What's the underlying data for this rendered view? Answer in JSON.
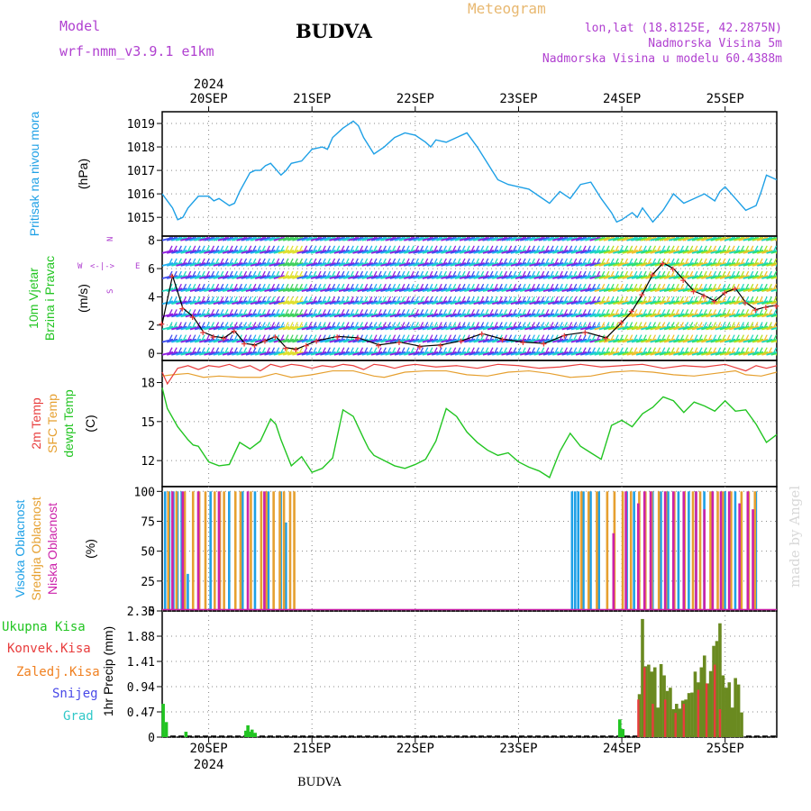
{
  "header": {
    "model_label": "Model",
    "model_name": "wrf-nmm_v3.9.1 e1km",
    "station": "BUDVA",
    "meteogram": "Meteogram",
    "lonlat": "lon,lat (18.8125E, 42.2875N)",
    "elevation": "Nadmorska Visina 5m",
    "model_elevation": "Nadmorska Visina u modelu 60.4388m",
    "footer_station": "BUDVA",
    "credit": "made by Angel"
  },
  "colors": {
    "pressure": "#1ea0e6",
    "temp2m": "#e83c3c",
    "sfc_temp": "#e6a030",
    "dewpt": "#22c522",
    "high_cloud": "#1ea0e6",
    "mid_cloud": "#e6a030",
    "low_cloud": "#cc22aa",
    "total_precip": "#22c522",
    "conv_precip": "#e83c3c",
    "frozen": "#f08020",
    "snow": "#4848e8",
    "graupel": "#30c8c8",
    "header_purple": "#b040d0",
    "header_orange": "#e8b870"
  },
  "chart_data": [
    {
      "type": "line",
      "panel": "pressure",
      "ylabel_lines": [
        "Pritisak na nivou mora",
        "(hPa)"
      ],
      "yticks": [
        1015,
        1016,
        1017,
        1018,
        1019
      ],
      "ylim": [
        1014.2,
        1019.5
      ],
      "x_start_day": 19.55,
      "x_end_day": 25.5,
      "series": [
        {
          "x": [
            19.55,
            19.6,
            19.65,
            19.7,
            19.75,
            19.8,
            19.9,
            20.0,
            20.05,
            20.1,
            20.2,
            20.25,
            20.3,
            20.4,
            20.45,
            20.5,
            20.55,
            20.6,
            20.7,
            20.75,
            20.8,
            20.9,
            21.0,
            21.1,
            21.15,
            21.2,
            21.3,
            21.4,
            21.45,
            21.5,
            21.6,
            21.7,
            21.8,
            21.9,
            22.0,
            22.1,
            22.15,
            22.2,
            22.3,
            22.4,
            22.5,
            22.6,
            22.7,
            22.8,
            22.9,
            23.0,
            23.1,
            23.2,
            23.3,
            23.4,
            23.5,
            23.6,
            23.7,
            23.8,
            23.9,
            23.95,
            24.0,
            24.1,
            24.15,
            24.2,
            24.3,
            24.4,
            24.5,
            24.6,
            24.7,
            24.8,
            24.9,
            24.95,
            25.0,
            25.1,
            25.2,
            25.3,
            25.35,
            25.4,
            25.5
          ],
          "y": [
            1016.0,
            1015.7,
            1015.4,
            1014.9,
            1015.0,
            1015.4,
            1015.9,
            1015.9,
            1015.7,
            1015.8,
            1015.5,
            1015.6,
            1016.1,
            1016.9,
            1017.0,
            1017.0,
            1017.2,
            1017.3,
            1016.8,
            1017.0,
            1017.3,
            1017.4,
            1017.9,
            1018.0,
            1017.9,
            1018.4,
            1018.8,
            1019.1,
            1018.9,
            1018.4,
            1017.7,
            1018.0,
            1018.4,
            1018.6,
            1018.5,
            1018.2,
            1018.0,
            1018.3,
            1018.2,
            1018.4,
            1018.6,
            1018.0,
            1017.3,
            1016.6,
            1016.4,
            1016.3,
            1016.2,
            1015.9,
            1015.6,
            1016.1,
            1015.8,
            1016.4,
            1016.5,
            1015.8,
            1015.2,
            1014.8,
            1014.9,
            1015.2,
            1015.0,
            1015.4,
            1014.8,
            1015.3,
            1016.0,
            1015.6,
            1015.8,
            1016.0,
            1015.7,
            1016.1,
            1016.3,
            1015.8,
            1015.3,
            1015.5,
            1016.1,
            1016.8,
            1016.6
          ]
        }
      ]
    },
    {
      "type": "scatter",
      "panel": "wind",
      "ylabel_lines": [
        "10m Vjetar",
        "Brzina i Pravac",
        "(m/s)"
      ],
      "legend": [
        "N",
        "W",
        "E",
        "S"
      ],
      "yticks": [
        0,
        2,
        4,
        6,
        8
      ],
      "ylim": [
        -0.5,
        8.3
      ],
      "series": [
        {
          "name": "wind speed",
          "x": [
            19.55,
            19.65,
            19.75,
            19.85,
            19.95,
            20.05,
            20.15,
            20.25,
            20.35,
            20.45,
            20.55,
            20.65,
            20.75,
            20.85,
            20.95,
            21.05,
            21.25,
            21.45,
            21.65,
            21.85,
            22.05,
            22.25,
            22.45,
            22.65,
            22.85,
            23.05,
            23.25,
            23.45,
            23.65,
            23.85,
            24.0,
            24.1,
            24.2,
            24.3,
            24.4,
            24.5,
            24.6,
            24.7,
            24.8,
            24.9,
            25.0,
            25.1,
            25.2,
            25.3,
            25.4,
            25.5
          ],
          "y": [
            2.1,
            5.5,
            3.2,
            2.6,
            1.5,
            1.2,
            1.1,
            1.6,
            0.7,
            0.6,
            0.9,
            1.2,
            0.4,
            0.3,
            0.6,
            0.9,
            1.2,
            1.1,
            0.6,
            0.8,
            0.5,
            0.6,
            0.9,
            1.4,
            1.0,
            0.8,
            0.7,
            1.3,
            1.5,
            1.1,
            2.2,
            3.0,
            4.2,
            5.6,
            6.4,
            6.0,
            5.2,
            4.4,
            4.1,
            3.7,
            4.3,
            4.6,
            3.6,
            3.1,
            3.3,
            3.4
          ]
        }
      ]
    },
    {
      "type": "line",
      "panel": "temperature",
      "ylabel_lines": [
        "2m Temp",
        "SFC Temp",
        "dewpt Temp",
        "(C)"
      ],
      "yticks": [
        12,
        15,
        18
      ],
      "ylim": [
        10.0,
        19.7
      ],
      "series": [
        {
          "name": "2m Temp",
          "x": [
            19.55,
            19.6,
            19.7,
            19.8,
            19.9,
            20.0,
            20.1,
            20.2,
            20.3,
            20.4,
            20.5,
            20.6,
            20.7,
            20.8,
            20.9,
            21.0,
            21.1,
            21.2,
            21.3,
            21.4,
            21.5,
            21.6,
            21.7,
            21.8,
            21.9,
            22.0,
            22.2,
            22.4,
            22.6,
            22.8,
            23.0,
            23.2,
            23.4,
            23.6,
            23.8,
            24.0,
            24.2,
            24.4,
            24.6,
            24.8,
            25.0,
            25.2,
            25.3,
            25.4,
            25.5
          ],
          "y": [
            18.8,
            17.9,
            19.1,
            19.3,
            19.0,
            19.3,
            19.2,
            19.4,
            19.1,
            19.3,
            18.9,
            19.4,
            19.2,
            19.4,
            19.3,
            19.1,
            19.3,
            19.2,
            19.4,
            19.3,
            19.0,
            19.4,
            19.3,
            19.1,
            19.3,
            19.4,
            19.2,
            19.3,
            19.1,
            19.4,
            19.3,
            19.1,
            19.2,
            19.4,
            19.2,
            19.3,
            19.4,
            19.1,
            19.3,
            19.2,
            19.4,
            18.9,
            19.3,
            19.1,
            19.3
          ]
        },
        {
          "name": "SFC Temp",
          "x": [
            19.55,
            19.65,
            19.8,
            19.95,
            20.1,
            20.3,
            20.5,
            20.65,
            20.8,
            21.0,
            21.2,
            21.4,
            21.6,
            21.7,
            21.9,
            22.1,
            22.3,
            22.5,
            22.7,
            22.9,
            23.1,
            23.3,
            23.5,
            23.7,
            23.9,
            24.1,
            24.3,
            24.5,
            24.7,
            24.9,
            25.1,
            25.2,
            25.35,
            25.5
          ],
          "y": [
            18.5,
            18.6,
            18.7,
            18.4,
            18.5,
            18.4,
            18.4,
            18.7,
            18.4,
            18.6,
            18.9,
            18.9,
            18.5,
            18.4,
            18.8,
            18.9,
            18.9,
            18.6,
            18.5,
            18.8,
            18.9,
            18.7,
            18.4,
            18.5,
            18.8,
            18.9,
            18.8,
            18.6,
            18.5,
            18.7,
            18.9,
            18.6,
            18.5,
            18.8
          ]
        },
        {
          "name": "dewpt Temp",
          "x": [
            19.55,
            19.6,
            19.7,
            19.8,
            19.85,
            19.9,
            20.0,
            20.1,
            20.2,
            20.3,
            20.4,
            20.5,
            20.6,
            20.65,
            20.7,
            20.8,
            20.9,
            21.0,
            21.1,
            21.2,
            21.3,
            21.4,
            21.5,
            21.55,
            21.6,
            21.7,
            21.8,
            21.9,
            22.0,
            22.1,
            22.2,
            22.3,
            22.4,
            22.5,
            22.6,
            22.7,
            22.8,
            22.9,
            23.0,
            23.1,
            23.2,
            23.3,
            23.4,
            23.5,
            23.6,
            23.7,
            23.8,
            23.9,
            24.0,
            24.1,
            24.2,
            24.3,
            24.4,
            24.5,
            24.6,
            24.7,
            24.8,
            24.9,
            25.0,
            25.1,
            25.2,
            25.3,
            25.4,
            25.5
          ],
          "y": [
            17.6,
            16.0,
            14.6,
            13.6,
            13.2,
            13.1,
            11.9,
            11.6,
            11.7,
            13.4,
            12.9,
            13.5,
            15.2,
            14.8,
            13.6,
            11.6,
            12.3,
            11.1,
            11.4,
            12.2,
            15.9,
            15.4,
            13.7,
            12.9,
            12.4,
            12.0,
            11.6,
            11.4,
            11.7,
            12.1,
            13.5,
            16.0,
            15.4,
            14.2,
            13.4,
            12.8,
            12.4,
            12.6,
            11.9,
            11.5,
            11.2,
            10.7,
            12.7,
            14.1,
            13.1,
            12.6,
            12.1,
            14.7,
            15.1,
            14.6,
            15.6,
            16.1,
            16.9,
            16.6,
            15.7,
            16.5,
            16.2,
            15.8,
            16.6,
            15.8,
            15.9,
            14.8,
            13.4,
            14.0
          ]
        }
      ]
    },
    {
      "type": "bar",
      "panel": "clouds",
      "ylabel_lines": [
        "Visoka Oblacnost",
        "Srednja Oblacnost",
        "Niska Oblacnost",
        "(%)"
      ],
      "yticks": [
        0,
        25,
        50,
        75,
        100
      ],
      "ylim": [
        0,
        104
      ],
      "series": [
        {
          "name": "Visoka Oblacnost",
          "x": [
            19.58,
            19.62,
            19.66,
            19.7,
            19.74,
            19.77,
            19.8,
            20.02,
            20.2,
            20.33,
            20.45,
            20.58,
            20.7,
            20.75,
            23.52,
            23.55,
            23.58,
            23.63,
            23.7,
            23.78,
            24.05,
            24.12,
            24.3,
            24.38,
            24.45,
            24.55,
            24.65,
            24.72,
            24.8,
            24.88,
            25.0,
            25.1,
            25.3
          ],
          "y": [
            100,
            100,
            100,
            100,
            100,
            30,
            31,
            100,
            100,
            100,
            100,
            100,
            100,
            74,
            100,
            100,
            100,
            100,
            100,
            100,
            100,
            100,
            100,
            100,
            100,
            100,
            100,
            100,
            100,
            100,
            100,
            100,
            100
          ]
        },
        {
          "name": "Srednja Oblacnost",
          "x": [
            19.6,
            19.68,
            19.76,
            19.84,
            19.9,
            19.96,
            20.05,
            20.1,
            20.14,
            20.25,
            20.3,
            20.4,
            20.5,
            20.55,
            20.62,
            20.68,
            20.72,
            20.78,
            20.82,
            23.6,
            23.67,
            23.75,
            23.85,
            23.92,
            24.0,
            24.08,
            24.16,
            24.22,
            24.28,
            24.35,
            24.42,
            24.5,
            24.6,
            24.68,
            24.75,
            24.85,
            24.92,
            24.97,
            25.05,
            25.15,
            25.22,
            25.28
          ],
          "y": [
            100,
            100,
            100,
            100,
            100,
            100,
            100,
            100,
            100,
            100,
            100,
            100,
            100,
            100,
            100,
            100,
            100,
            100,
            100,
            100,
            100,
            100,
            100,
            100,
            100,
            100,
            100,
            100,
            100,
            100,
            100,
            100,
            100,
            100,
            100,
            100,
            100,
            100,
            100,
            100,
            100,
            100
          ]
        },
        {
          "name": "Niska Oblacnost",
          "x": [
            19.63,
            19.73,
            19.88,
            20.08,
            20.36,
            20.52,
            23.9,
            24.02,
            24.14,
            24.2,
            24.26,
            24.4,
            24.48,
            24.58,
            24.7,
            24.78,
            24.86,
            24.94,
            25.02,
            25.12,
            25.2,
            25.25
          ],
          "y": [
            100,
            100,
            100,
            100,
            100,
            100,
            65,
            100,
            90,
            100,
            100,
            100,
            100,
            100,
            100,
            85,
            100,
            100,
            100,
            90,
            100,
            85
          ]
        }
      ]
    },
    {
      "type": "bar",
      "panel": "precip",
      "ylabel_lines": [
        "Ukupna Kisa",
        "Konvek.Kisa",
        "Zaledj.Kisa",
        "Snijeg",
        "Grad",
        "1hr Precip (mm)"
      ],
      "yticks": [
        0,
        0.47,
        0.94,
        1.41,
        1.88,
        2.35
      ],
      "ylim": [
        0,
        2.35
      ],
      "series": [
        {
          "name": "Ukupna Kisa",
          "x": [
            19.56,
            19.59,
            19.78,
            20.36,
            20.38,
            20.4,
            20.42,
            20.45,
            23.98,
            24.01,
            24.17,
            24.2,
            24.23,
            24.26,
            24.29,
            24.32,
            24.35,
            24.38,
            24.41,
            24.44,
            24.47,
            24.5,
            24.53,
            24.56,
            24.59,
            24.62,
            24.65,
            24.68,
            24.71,
            24.74,
            24.77,
            24.8,
            24.83,
            24.86,
            24.89,
            24.92,
            24.95,
            24.98,
            25.01,
            25.04,
            25.07,
            25.1,
            25.13,
            25.16
          ],
          "y": [
            0.62,
            0.28,
            0.1,
            0.12,
            0.22,
            0.1,
            0.14,
            0.08,
            0.33,
            0.15,
            0.8,
            2.2,
            1.32,
            1.35,
            1.22,
            1.3,
            0.55,
            1.36,
            1.15,
            0.86,
            0.92,
            0.52,
            0.62,
            0.53,
            0.68,
            0.7,
            0.82,
            0.83,
            1.22,
            1.02,
            1.3,
            1.52,
            1.0,
            1.23,
            1.7,
            1.79,
            2.12,
            1.15,
            0.92,
            1.02,
            0.55,
            1.1,
            0.98,
            0.46
          ]
        },
        {
          "name": "Konvek.Kisa",
          "x": [
            24.16,
            24.22,
            24.3,
            24.42,
            24.52,
            24.6,
            24.74,
            24.82,
            24.9,
            24.95
          ],
          "y": [
            0.7,
            1.3,
            0.62,
            0.7,
            0.45,
            0.62,
            0.88,
            1.0,
            1.35,
            0.52
          ]
        },
        {
          "name": "Zaledj.Kisa",
          "x": [],
          "y": []
        },
        {
          "name": "Snijeg",
          "x": [],
          "y": []
        },
        {
          "name": "Grad",
          "x": [],
          "y": []
        }
      ]
    }
  ],
  "xaxis": {
    "days": [
      "20SEP",
      "21SEP",
      "22SEP",
      "23SEP",
      "24SEP",
      "25SEP"
    ],
    "day_values": [
      20,
      21,
      22,
      23,
      24,
      25
    ],
    "year": "2024"
  }
}
